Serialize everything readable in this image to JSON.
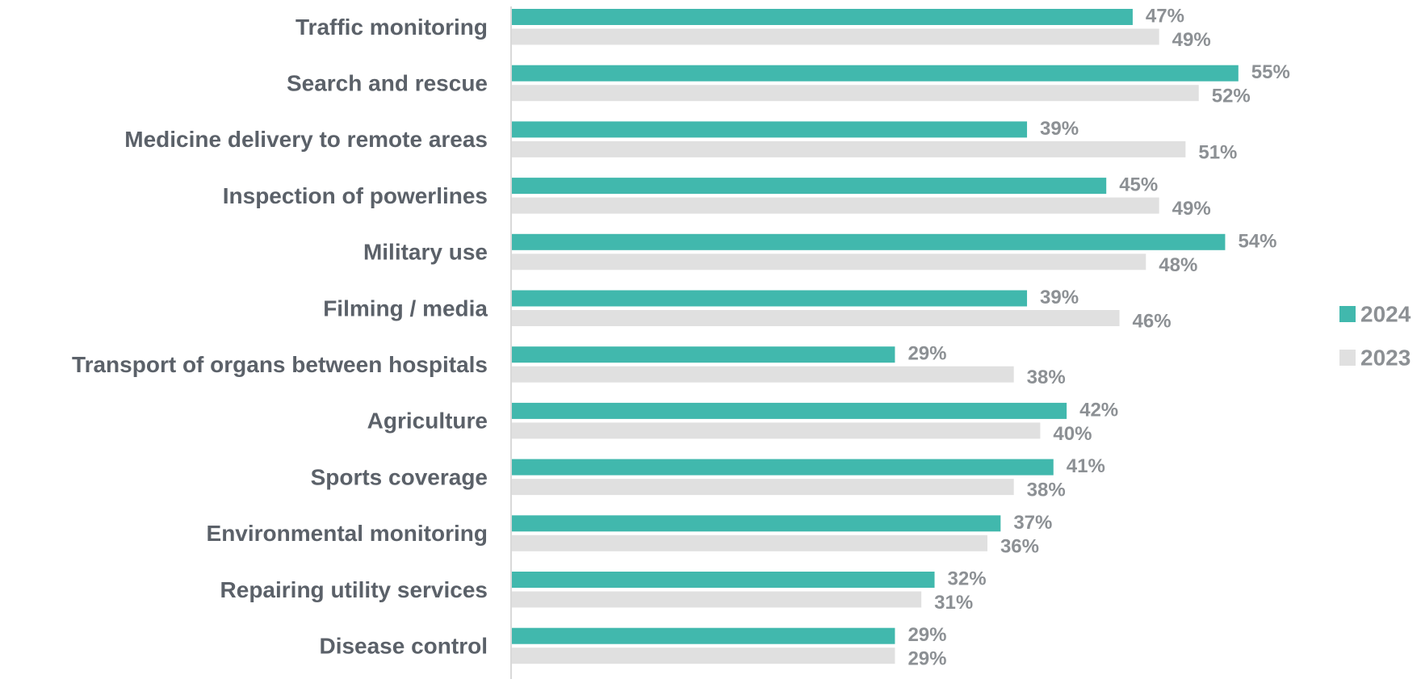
{
  "chart_data": {
    "type": "bar",
    "orientation": "horizontal",
    "categories": [
      "Traffic monitoring",
      "Search and rescue",
      "Medicine delivery to remote areas",
      "Inspection of powerlines",
      "Military use",
      "Filming / media",
      "Transport of organs between hospitals",
      "Agriculture",
      "Sports coverage",
      "Environmental monitoring",
      "Repairing utility services",
      "Disease control"
    ],
    "series": [
      {
        "name": "2024",
        "color": "#41b8ad",
        "values": [
          47,
          55,
          39,
          45,
          54,
          39,
          29,
          42,
          41,
          37,
          32,
          29
        ]
      },
      {
        "name": "2023",
        "color": "#e0e0e0",
        "values": [
          49,
          52,
          51,
          49,
          48,
          46,
          38,
          40,
          38,
          36,
          31,
          29
        ]
      }
    ],
    "value_suffix": "%",
    "data_labels": true,
    "legend_position": "right",
    "grid": false
  }
}
